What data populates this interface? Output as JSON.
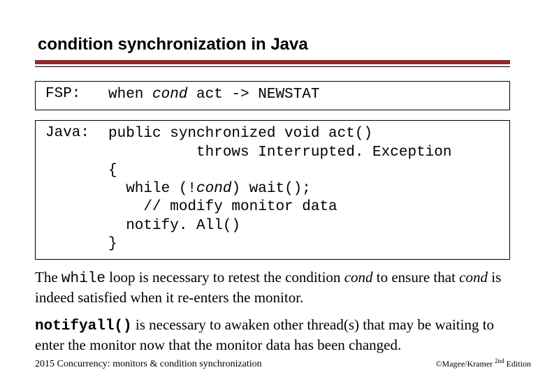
{
  "title": "condition synchronization in Java",
  "colors": {
    "rule": "#902a2a",
    "text": "#000000",
    "background": "#ffffff"
  },
  "fonts": {
    "title_family": "Arial",
    "title_size_pt": 24,
    "body_family": "Times New Roman",
    "body_size_pt": 21,
    "mono_family": "Courier New",
    "mono_size_pt": 21,
    "footer_left_size_pt": 14,
    "footer_right_size_pt": 12
  },
  "box1": {
    "label": "FSP:",
    "code": {
      "pre1": "when ",
      "cond": "cond",
      "post1": " act -> NEWSTAT"
    }
  },
  "box2": {
    "label": "Java:",
    "code": {
      "l1a": "public synchronized void act()",
      "l2a": "          throws Interrupted. Exception",
      "l3a": "{",
      "l4a": "  while (!",
      "l4b": "cond",
      "l4c": ") wait();",
      "l5a": "    // modify monitor data",
      "l6a": "  notify. All()",
      "l7a": "}"
    }
  },
  "para1": {
    "t1": "The ",
    "m1": "while",
    "t2": " loop is necessary to retest the condition ",
    "i1": "cond",
    "t3": " to ensure that ",
    "i2": "cond",
    "t4": " is indeed satisfied when it re-enters the monitor."
  },
  "para2": {
    "m1": "notifyall()",
    "t1": " is necessary to awaken other thread(s) that may be waiting to enter the monitor now that the monitor data has been changed."
  },
  "footer": {
    "left": "2015  Concurrency: monitors & condition synchronization",
    "right_pre": "©Magee/Kramer ",
    "right_sup": "2nd",
    "right_post": " Edition"
  }
}
